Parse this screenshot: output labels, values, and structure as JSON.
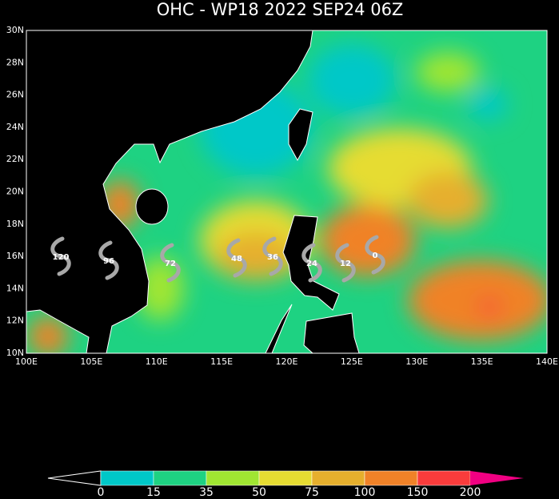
{
  "title": "OHC - WP18 2022 SEP24 06Z",
  "lat_labels": [
    "10N",
    "12N",
    "14N",
    "16N",
    "18N",
    "20N",
    "22N",
    "24N",
    "26N",
    "28N",
    "30N"
  ],
  "lon_labels": [
    "100E",
    "105E",
    "110E",
    "115E",
    "120E",
    "125E",
    "130E",
    "135E",
    "140E"
  ],
  "track_labels": [
    120,
    96,
    72,
    48,
    36,
    24,
    12,
    0
  ],
  "colorbar": {
    "labels": [
      0,
      15,
      35,
      50,
      75,
      100,
      150,
      200
    ],
    "colors": [
      "#000000",
      "#00c8c8",
      "#1ed282",
      "#a0e632",
      "#e6dc32",
      "#e6af2d",
      "#f08228",
      "#fa3c3c",
      "#f00082"
    ]
  }
}
